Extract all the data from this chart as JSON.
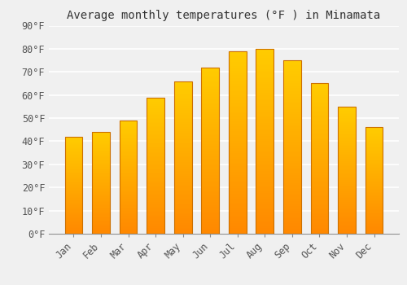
{
  "title": "Average monthly temperatures (°F ) in Minamata",
  "months": [
    "Jan",
    "Feb",
    "Mar",
    "Apr",
    "May",
    "Jun",
    "Jul",
    "Aug",
    "Sep",
    "Oct",
    "Nov",
    "Dec"
  ],
  "values": [
    42,
    44,
    49,
    59,
    66,
    72,
    79,
    80,
    75,
    65,
    55,
    46
  ],
  "bar_color_top": "#FFB300",
  "bar_color_bottom": "#FF8C00",
  "bar_edge_color": "#CC7000",
  "ylim": [
    0,
    90
  ],
  "yticks": [
    0,
    10,
    20,
    30,
    40,
    50,
    60,
    70,
    80,
    90
  ],
  "background_color": "#f0f0f0",
  "plot_bg_color": "#f0f0f0",
  "grid_color": "#ffffff",
  "title_fontsize": 10,
  "tick_fontsize": 8.5
}
